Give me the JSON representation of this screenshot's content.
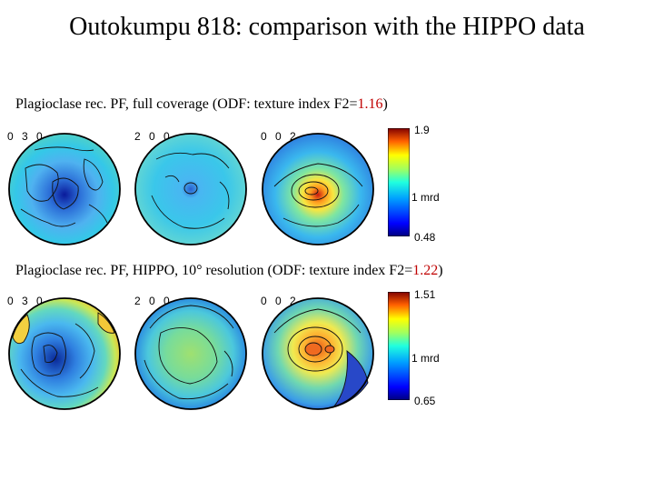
{
  "slide": {
    "title": "Outokumpu 818: comparison with the HIPPO data"
  },
  "panels": [
    {
      "caption_prefix": "Plagioclase rec. PF, full coverage (ODF: texture index F2=",
      "caption_value": "1.16",
      "caption_suffix": ")",
      "pole_figures": [
        {
          "label": "0 3 0",
          "scheme": "blue-dominant"
        },
        {
          "label": "2 0 0",
          "scheme": "cyan-uniform"
        },
        {
          "label": "0 0 2",
          "scheme": "center-max"
        }
      ],
      "colorbar": {
        "max": "1.9",
        "mid": "1 mrd",
        "min": "0.48"
      }
    },
    {
      "caption_prefix": "Plagioclase rec. PF, HIPPO, 10° resolution (ODF: texture index F2=",
      "caption_value": "1.22",
      "caption_suffix": ")",
      "pole_figures": [
        {
          "label": "0 3 0",
          "scheme": "blue-center-rim-max"
        },
        {
          "label": "2 0 0",
          "scheme": "green-uniform"
        },
        {
          "label": "0 0 2",
          "scheme": "orange-center"
        }
      ],
      "colorbar": {
        "max": "1.51",
        "mid": "1 mrd",
        "min": "0.65"
      }
    }
  ],
  "colors": {
    "caption_value": "#c00000"
  }
}
